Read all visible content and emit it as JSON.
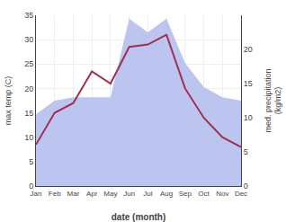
{
  "chart_data": {
    "type": "line",
    "categories": [
      "Jan",
      "Feb",
      "Mar",
      "Apr",
      "May",
      "Jun",
      "Jul",
      "Aug",
      "Sep",
      "Oct",
      "Nov",
      "Dec"
    ],
    "series": [
      {
        "type": "area",
        "color": "#bcc4f0",
        "axis": "y2",
        "values": [
          10.5,
          12.5,
          13.0,
          13.0,
          13.0,
          24.5,
          22.5,
          24.5,
          18.0,
          14.5,
          13.0,
          12.5
        ]
      },
      {
        "type": "line",
        "color": "#a03050",
        "values": [
          8.5,
          15.0,
          17.0,
          23.5,
          21.0,
          28.5,
          29.0,
          31.0,
          20.0,
          14.0,
          10.0,
          8.0
        ]
      }
    ],
    "xlabel": "date (month)",
    "ylabel": "max temp (C)",
    "y2label": "med. precipitation\n(kg/m2)",
    "ylim": [
      0,
      35
    ],
    "yticks": [
      0,
      5,
      10,
      15,
      20,
      25,
      30,
      35
    ],
    "y2lim": [
      0,
      25
    ],
    "y2ticks": [
      0,
      5,
      10,
      15,
      20
    ],
    "grid": true
  }
}
